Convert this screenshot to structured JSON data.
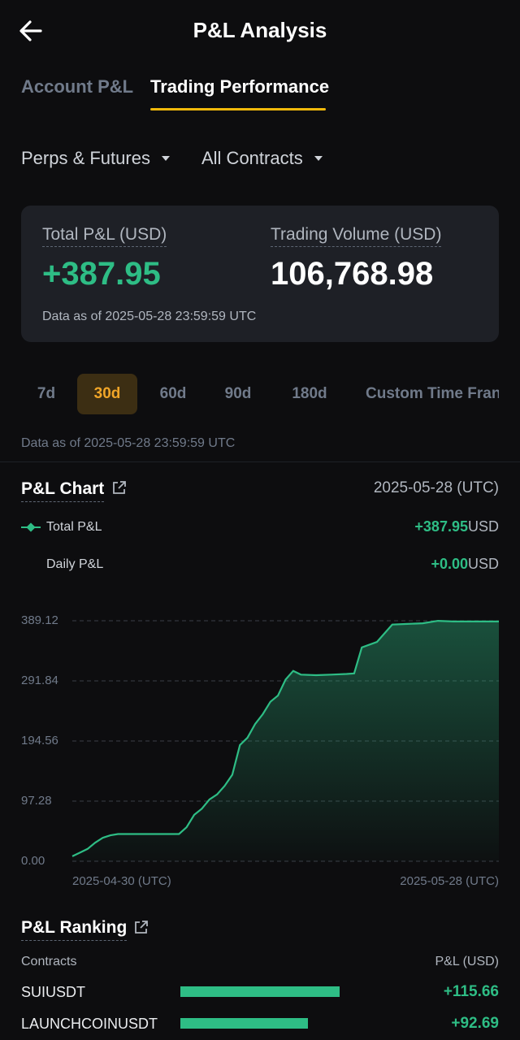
{
  "header": {
    "title": "P&L Analysis",
    "back_icon": "arrow-left-icon"
  },
  "tabs": [
    {
      "label": "Account P&L",
      "active": false
    },
    {
      "label": "Trading Performance",
      "active": true
    }
  ],
  "filters": {
    "product": "Perps & Futures",
    "contracts": "All Contracts"
  },
  "summary": {
    "total_pnl_label": "Total P&L (USD)",
    "total_pnl_value": "+387.95",
    "volume_label": "Trading Volume (USD)",
    "volume_value": "106,768.98",
    "data_as_of": "Data as of 2025-05-28 23:59:59 UTC"
  },
  "time_ranges": [
    "7d",
    "30d",
    "60d",
    "90d",
    "180d",
    "Custom Time Fran"
  ],
  "active_range": "30d",
  "data_as_of": "Data as of 2025-05-28 23:59:59 UTC",
  "pnl_chart": {
    "title": "P&L Chart",
    "date": "2025-05-28 (UTC)",
    "total_label": "Total P&L",
    "total_value": "+387.95",
    "total_unit": "USD",
    "daily_label": "Daily P&L",
    "daily_value": "+0.00",
    "daily_unit": "USD"
  },
  "chart_data": {
    "type": "area",
    "y_ticks": [
      "389.12",
      "291.84",
      "194.56",
      "97.28",
      "0.00"
    ],
    "ylim": [
      0,
      389.12
    ],
    "x_labels": [
      "2025-04-30 (UTC)",
      "2025-05-28 (UTC)"
    ],
    "series": [
      {
        "name": "Total P&L",
        "color": "#2ebd85",
        "points": [
          [
            0,
            8
          ],
          [
            0.5,
            14
          ],
          [
            1,
            20
          ],
          [
            1.5,
            30
          ],
          [
            2,
            38
          ],
          [
            2.5,
            42
          ],
          [
            3,
            44
          ],
          [
            4,
            44
          ],
          [
            5,
            44
          ],
          [
            6,
            44
          ],
          [
            7,
            44
          ],
          [
            7.5,
            55
          ],
          [
            8,
            75
          ],
          [
            8.5,
            85
          ],
          [
            9,
            100
          ],
          [
            9.5,
            108
          ],
          [
            10,
            122
          ],
          [
            10.5,
            140
          ],
          [
            11,
            188
          ],
          [
            11.5,
            200
          ],
          [
            12,
            222
          ],
          [
            12.5,
            238
          ],
          [
            13,
            258
          ],
          [
            13.5,
            268
          ],
          [
            14,
            294
          ],
          [
            14.5,
            308
          ],
          [
            15,
            302
          ],
          [
            16,
            301
          ],
          [
            17,
            302
          ],
          [
            18,
            303
          ],
          [
            18.5,
            304
          ],
          [
            19,
            346
          ],
          [
            20,
            355
          ],
          [
            21,
            383
          ],
          [
            22,
            384
          ],
          [
            23,
            385
          ],
          [
            24,
            389
          ],
          [
            25,
            388
          ],
          [
            26,
            388
          ],
          [
            27,
            388
          ],
          [
            28,
            388
          ]
        ]
      }
    ],
    "grid": true
  },
  "ranking": {
    "title": "P&L Ranking",
    "col_contract": "Contracts",
    "col_pnl": "P&L (USD)",
    "rows": [
      {
        "contract": "SUIUSDT",
        "value": "+115.66",
        "pnl": 115.66
      },
      {
        "contract": "LAUNCHCOINUSDT",
        "value": "+92.69",
        "pnl": 92.69
      }
    ]
  }
}
